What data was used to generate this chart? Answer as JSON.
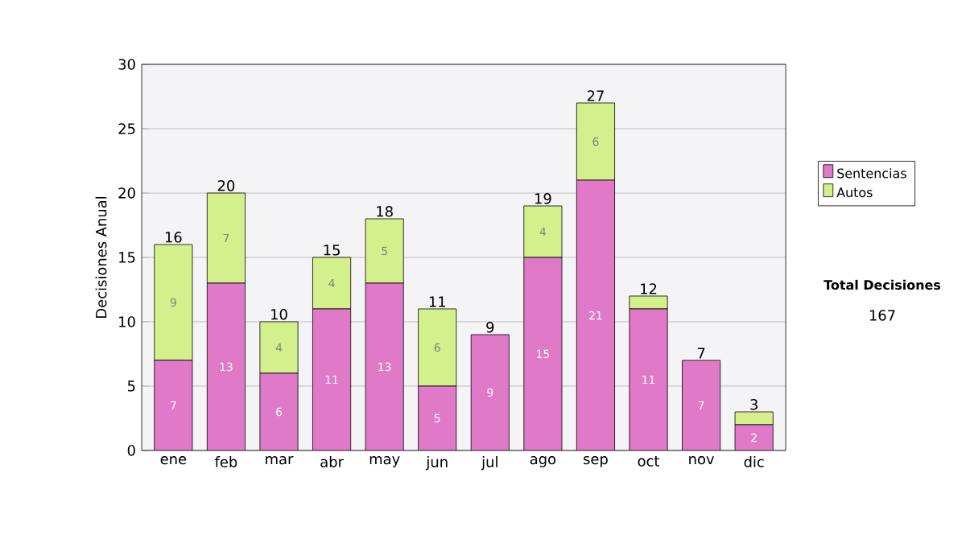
{
  "chart_data": {
    "type": "bar",
    "stacked": true,
    "ylabel": "Decisiones Anual",
    "categories": [
      "ene",
      "feb",
      "mar",
      "abr",
      "may",
      "jun",
      "jul",
      "ago",
      "sep",
      "oct",
      "nov",
      "dic"
    ],
    "series": [
      {
        "name": "Sentencias",
        "color": "#e07ac8",
        "values": [
          7,
          13,
          6,
          11,
          13,
          5,
          9,
          15,
          21,
          11,
          7,
          2
        ],
        "value_labels": [
          "7",
          "13",
          "6",
          "11",
          "13",
          "5",
          "9",
          "15",
          "21",
          "11",
          "7",
          "2"
        ]
      },
      {
        "name": "Autos",
        "color": "#d4f08c",
        "values": [
          9,
          7,
          4,
          4,
          5,
          6,
          0,
          4,
          6,
          1,
          0,
          1
        ],
        "value_labels": [
          "9",
          "7",
          "4",
          "4",
          "5",
          "6",
          null,
          "4",
          "6",
          null,
          null,
          null
        ]
      }
    ],
    "totals": [
      "16",
      "20",
      "10",
      "15",
      "18",
      "11",
      "9",
      "19",
      "27",
      "12",
      "7",
      "3"
    ],
    "ylim": [
      0,
      30
    ],
    "yticks": [
      0,
      5,
      10,
      15,
      20,
      25,
      30
    ],
    "grid": "y",
    "legend": "right",
    "annotations": [
      "Total Decisiones",
      "167"
    ]
  }
}
